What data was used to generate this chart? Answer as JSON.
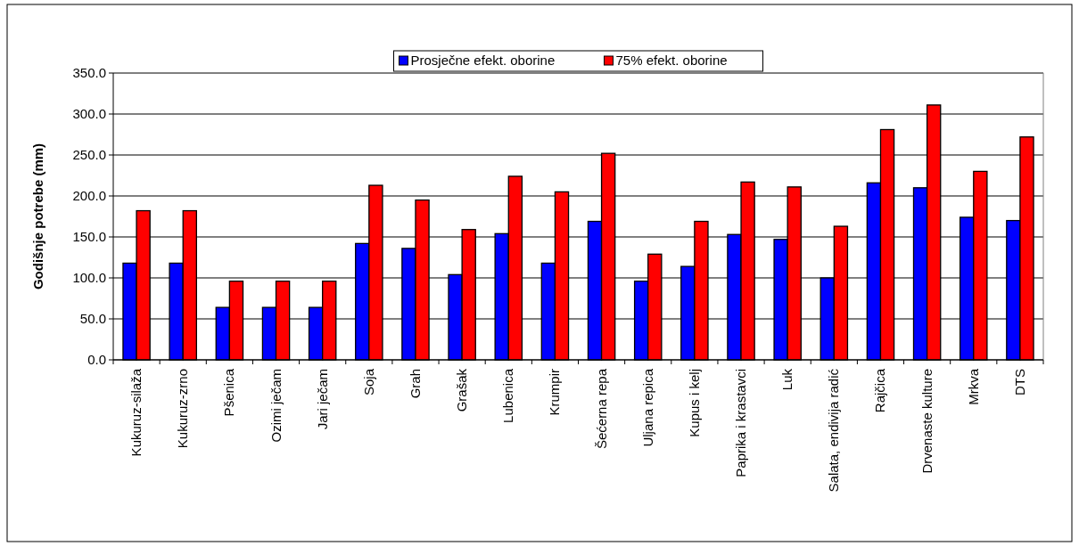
{
  "chart_data": {
    "type": "bar",
    "ylabel": "Godišnje potrebe (mm)",
    "categories": [
      "Kukuruz-silaža",
      "Kukuruz-zrno",
      "Pšenica",
      "Ozimi ječam",
      "Jari ječam",
      "Soja",
      "Grah",
      "Grašak",
      "Lubenica",
      "Krumpir",
      "Šećerna repa",
      "Uljana repica",
      "Kupus i kelj",
      "Paprika i krastavci",
      "Luk",
      "Salata, endivija radić",
      "Rajčica",
      "Drvenaste kulture",
      "Mrkva",
      "DTS"
    ],
    "series": [
      {
        "name": "Prosječne efekt. oborine",
        "color": "#0000ff",
        "values": [
          118,
          118,
          64,
          64,
          64,
          142,
          136,
          104,
          154,
          118,
          169,
          96,
          114,
          153,
          147,
          100,
          216,
          210,
          174,
          170
        ]
      },
      {
        "name": "75% efekt. oborine",
        "color": "#ff0000",
        "values": [
          182,
          182,
          96,
          96,
          96,
          213,
          195,
          159,
          224,
          205,
          252,
          129,
          169,
          217,
          211,
          163,
          281,
          311,
          230,
          272
        ]
      }
    ],
    "ylim": [
      0,
      350
    ],
    "yticks": [
      {
        "value": 0,
        "label": "0.0"
      },
      {
        "value": 50,
        "label": "50.0"
      },
      {
        "value": 100,
        "label": "100.0"
      },
      {
        "value": 150,
        "label": "150.0"
      },
      {
        "value": 200,
        "label": "200.0"
      },
      {
        "value": 250,
        "label": "250.0"
      },
      {
        "value": 300,
        "label": "300.0"
      },
      {
        "value": 350,
        "label": "350.0"
      }
    ],
    "grid": "y",
    "legend": "top"
  }
}
